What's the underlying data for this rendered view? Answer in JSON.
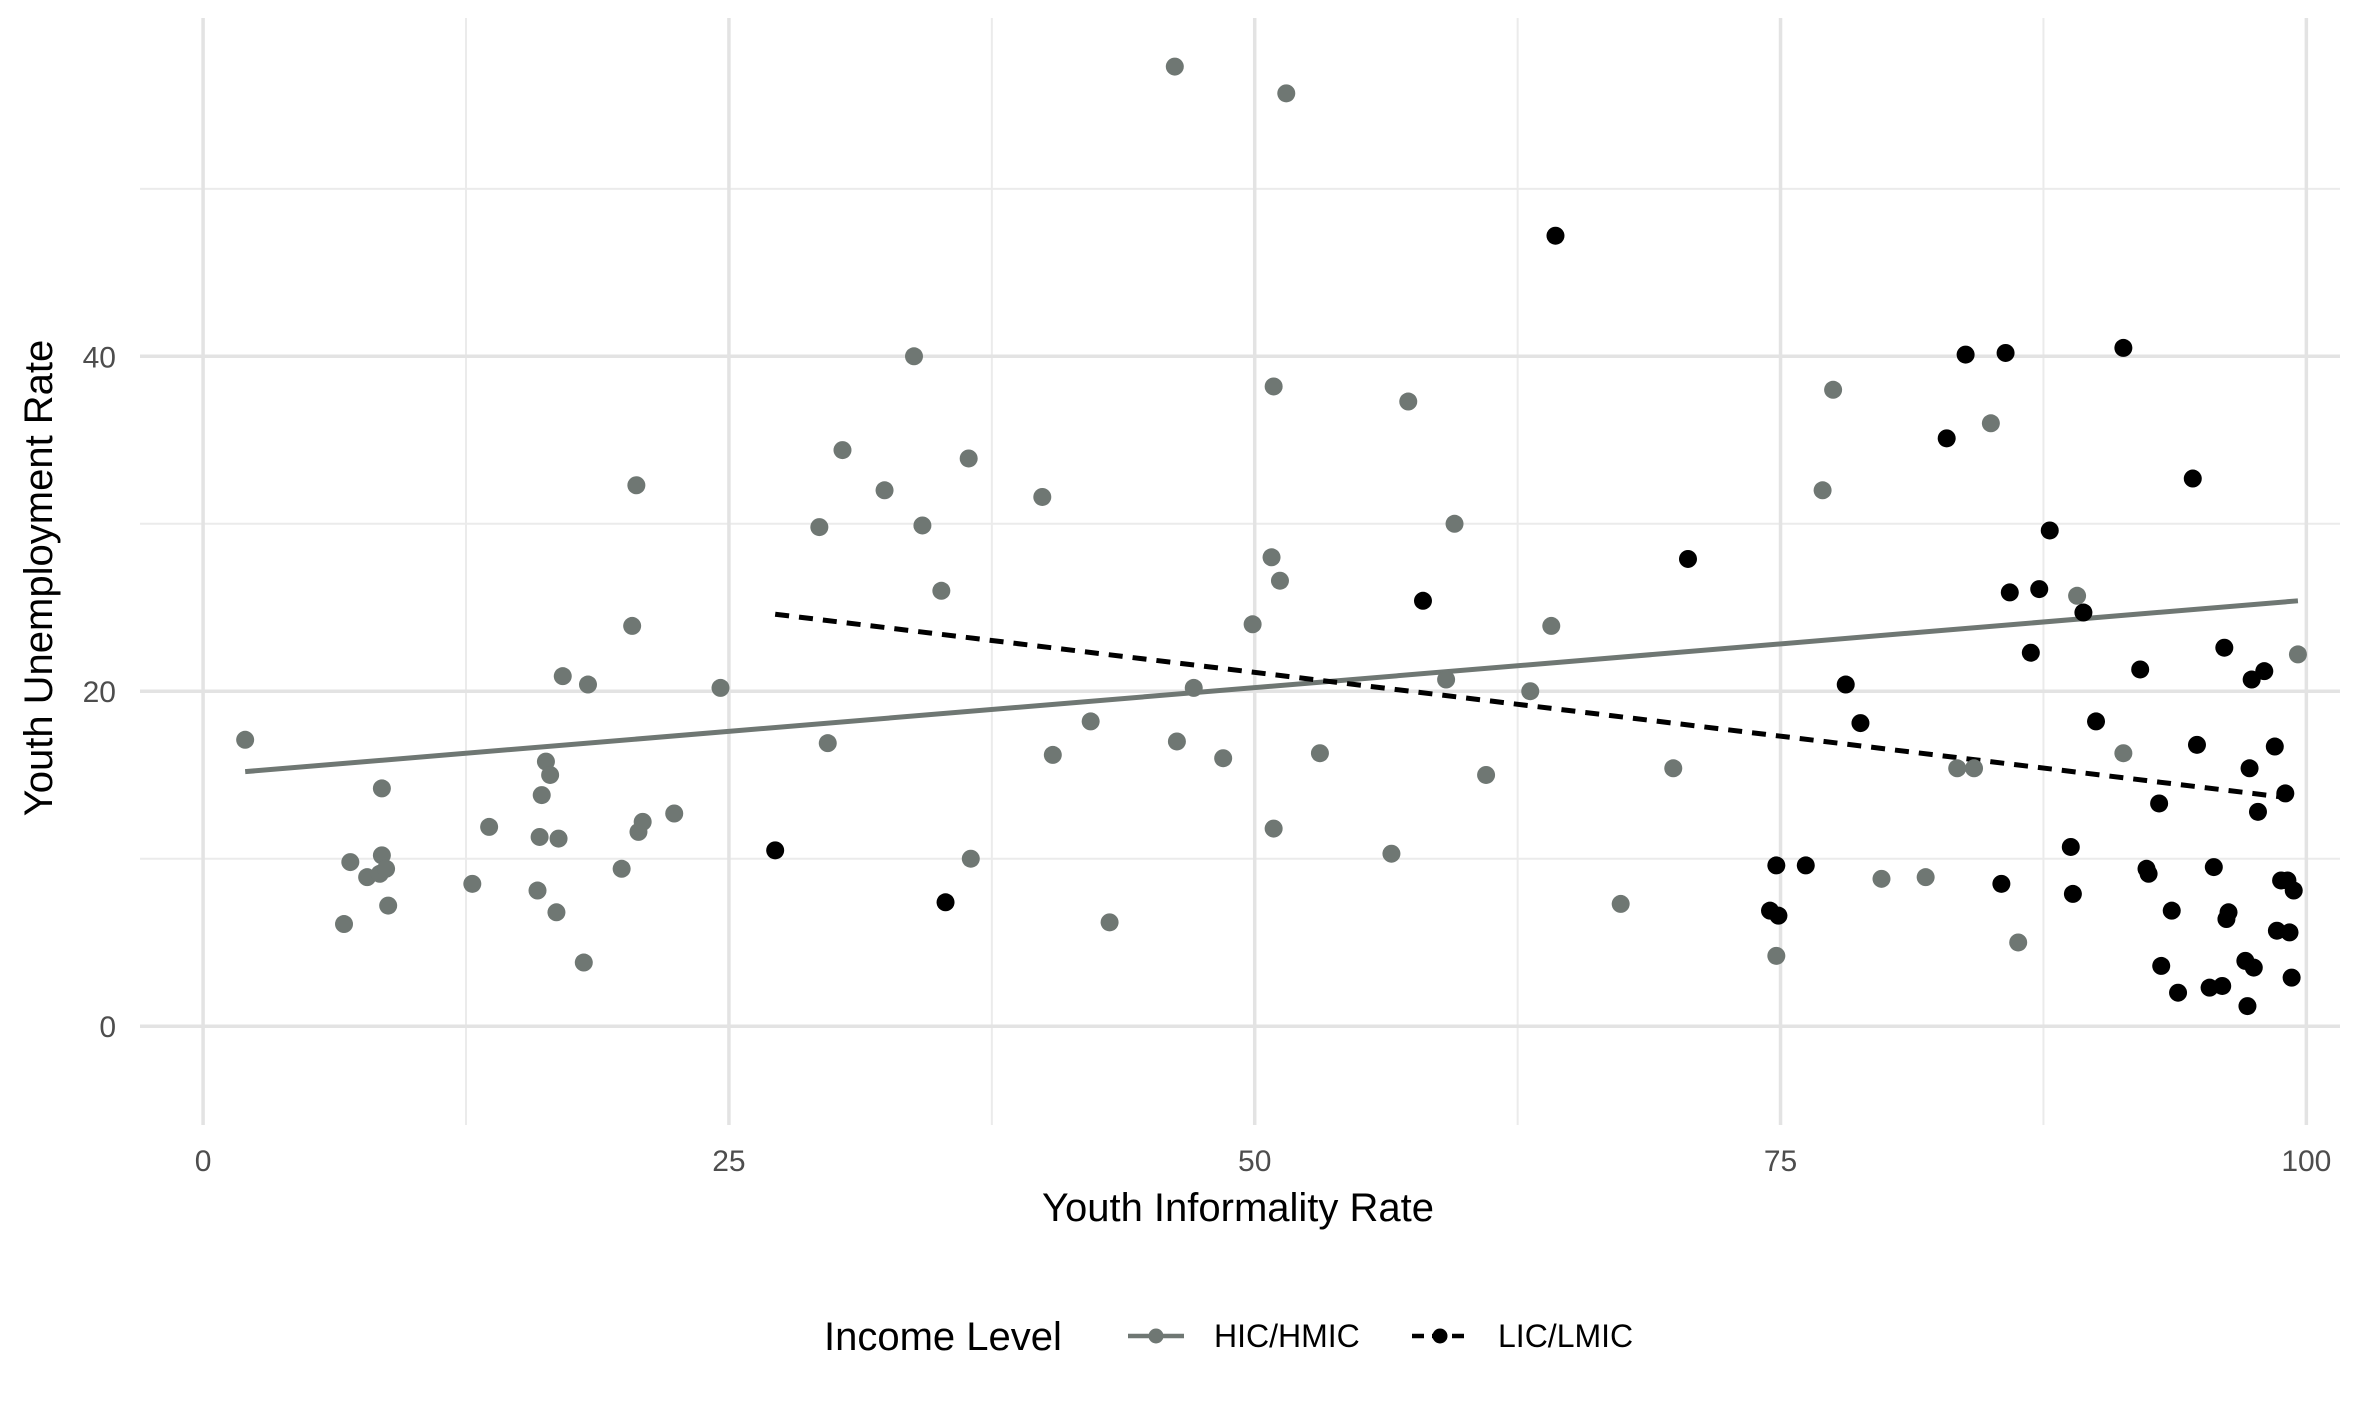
{
  "chart_data": {
    "type": "scatter",
    "xlabel": "Youth Informality Rate",
    "ylabel": "Youth Unemployment Rate",
    "xlim": [
      -3,
      101.6
    ],
    "ylim": [
      -5.9,
      60.2
    ],
    "x_ticks": [
      0,
      25,
      50,
      75,
      100
    ],
    "y_ticks": [
      0,
      20,
      40
    ],
    "grid": true,
    "legend": {
      "title": "Income Level",
      "position": "bottom",
      "entries": [
        "HIC/HMIC",
        "LIC/LMIC"
      ]
    },
    "series": [
      {
        "name": "HIC/HMIC",
        "color": "#6f7773",
        "line_style": "solid",
        "trend": {
          "x": [
            2,
            99.6
          ],
          "y": [
            15.2,
            25.4
          ]
        },
        "points": [
          [
            2,
            17.1
          ],
          [
            6.7,
            6.1
          ],
          [
            7,
            9.8
          ],
          [
            7.8,
            8.9
          ],
          [
            8.4,
            9.1
          ],
          [
            8.5,
            14.2
          ],
          [
            8.5,
            10.2
          ],
          [
            8.7,
            9.4
          ],
          [
            8.8,
            7.2
          ],
          [
            12.8,
            8.5
          ],
          [
            13.6,
            11.9
          ],
          [
            15.9,
            8.1
          ],
          [
            16,
            11.3
          ],
          [
            16.1,
            13.8
          ],
          [
            16.3,
            15.8
          ],
          [
            16.5,
            15
          ],
          [
            16.8,
            6.8
          ],
          [
            16.9,
            11.2
          ],
          [
            17.1,
            20.9
          ],
          [
            18.1,
            3.8
          ],
          [
            18.3,
            20.4
          ],
          [
            19.9,
            9.4
          ],
          [
            20.4,
            23.9
          ],
          [
            20.6,
            32.3
          ],
          [
            20.7,
            11.6
          ],
          [
            20.9,
            12.2
          ],
          [
            22.4,
            12.7
          ],
          [
            24.6,
            20.2
          ],
          [
            29.3,
            29.8
          ],
          [
            29.7,
            16.9
          ],
          [
            30.4,
            34.4
          ],
          [
            32.4,
            32
          ],
          [
            33.8,
            40
          ],
          [
            34.2,
            29.9
          ],
          [
            35.1,
            26
          ],
          [
            36.4,
            33.9
          ],
          [
            36.5,
            10
          ],
          [
            39.9,
            31.6
          ],
          [
            40.4,
            16.2
          ],
          [
            42.2,
            18.2
          ],
          [
            43.1,
            6.2
          ],
          [
            46.2,
            57.3
          ],
          [
            46.3,
            17
          ],
          [
            47.1,
            20.2
          ],
          [
            48.5,
            16
          ],
          [
            49.9,
            24
          ],
          [
            50.8,
            28
          ],
          [
            50.9,
            38.2
          ],
          [
            50.9,
            11.8
          ],
          [
            51.2,
            26.6
          ],
          [
            51.5,
            55.7
          ],
          [
            53.1,
            16.3
          ],
          [
            56.5,
            10.3
          ],
          [
            57.3,
            37.3
          ],
          [
            59.1,
            20.7
          ],
          [
            59.5,
            30
          ],
          [
            61,
            15
          ],
          [
            63.1,
            20
          ],
          [
            64.1,
            23.9
          ],
          [
            67.4,
            7.3
          ],
          [
            69.9,
            15.4
          ],
          [
            74.8,
            4.2
          ],
          [
            77,
            32
          ],
          [
            77.5,
            38
          ],
          [
            79.8,
            8.8
          ],
          [
            81.9,
            8.9
          ],
          [
            83.4,
            15.4
          ],
          [
            84.2,
            15.4
          ],
          [
            85,
            36
          ],
          [
            86.3,
            5
          ],
          [
            89.1,
            25.7
          ],
          [
            91.3,
            16.3
          ],
          [
            99.6,
            22.2
          ]
        ]
      },
      {
        "name": "LIC/LMIC",
        "color": "#000000",
        "line_style": "dashed",
        "trend": {
          "x": [
            27.2,
            99.4
          ],
          "y": [
            24.6,
            13.6
          ]
        },
        "points": [
          [
            27.2,
            10.5
          ],
          [
            35.3,
            7.4
          ],
          [
            58,
            25.4
          ],
          [
            64.3,
            47.2
          ],
          [
            70.6,
            27.9
          ],
          [
            74.5,
            6.9
          ],
          [
            74.8,
            9.6
          ],
          [
            74.9,
            6.6
          ],
          [
            76.2,
            9.6
          ],
          [
            78.1,
            20.4
          ],
          [
            78.8,
            18.1
          ],
          [
            82.9,
            35.1
          ],
          [
            83.8,
            40.1
          ],
          [
            85.5,
            8.5
          ],
          [
            85.7,
            40.2
          ],
          [
            85.9,
            25.9
          ],
          [
            86.9,
            22.3
          ],
          [
            87.3,
            26.1
          ],
          [
            87.8,
            29.6
          ],
          [
            88.8,
            10.7
          ],
          [
            88.9,
            7.9
          ],
          [
            89.4,
            24.7
          ],
          [
            90,
            18.2
          ],
          [
            91.3,
            40.5
          ],
          [
            92.1,
            21.3
          ],
          [
            92.4,
            9.4
          ],
          [
            92.5,
            9.1
          ],
          [
            93,
            13.3
          ],
          [
            93.1,
            3.6
          ],
          [
            93.6,
            6.9
          ],
          [
            93.9,
            2
          ],
          [
            94.6,
            32.7
          ],
          [
            94.8,
            16.8
          ],
          [
            95.4,
            2.3
          ],
          [
            95.6,
            9.5
          ],
          [
            96,
            2.4
          ],
          [
            96.1,
            22.6
          ],
          [
            96.2,
            6.4
          ],
          [
            96.3,
            6.8
          ],
          [
            97.1,
            3.9
          ],
          [
            97.2,
            1.2
          ],
          [
            97.3,
            15.4
          ],
          [
            97.4,
            20.7
          ],
          [
            97.5,
            3.5
          ],
          [
            97.7,
            12.8
          ],
          [
            98,
            21.2
          ],
          [
            98.5,
            16.7
          ],
          [
            98.6,
            5.7
          ],
          [
            98.8,
            8.7
          ],
          [
            99,
            13.9
          ],
          [
            99.1,
            8.7
          ],
          [
            99.2,
            5.6
          ],
          [
            99.3,
            2.9
          ],
          [
            99.4,
            8.1
          ]
        ]
      }
    ]
  }
}
